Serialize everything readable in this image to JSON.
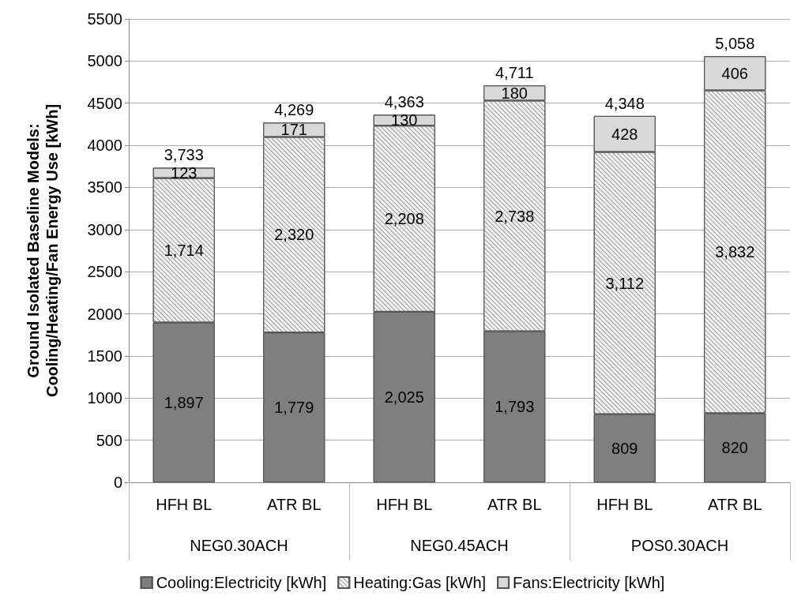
{
  "chart_data": {
    "type": "bar",
    "stacked": true,
    "ylabel": "Ground Isolated Baseline Models: Cooling/Heating/Fan Energy Use [kWh]",
    "categories": [
      "HFH BL",
      "ATR BL",
      "HFH BL",
      "ATR BL",
      "HFH BL",
      "ATR BL"
    ],
    "series": [
      {
        "name": "Cooling:Electricity [kWh]",
        "color": "#7f7f7f",
        "values": [
          1897,
          1779,
          2025,
          1793,
          809,
          820
        ],
        "value_labels": [
          "1,897",
          "1,779",
          "2,025",
          "1,793",
          "809",
          "820"
        ]
      },
      {
        "name": "Heating:Gas [kWh]",
        "color": "#f2f2f2",
        "values": [
          1714,
          2320,
          2208,
          2738,
          3112,
          3832
        ],
        "value_labels": [
          "1,714",
          "2,320",
          "2,208",
          "2,738",
          "3,112",
          "3,832"
        ]
      },
      {
        "name": "Fans:Electricity [kWh]",
        "color": "#d9d9d9",
        "values": [
          123,
          171,
          130,
          180,
          428,
          406
        ],
        "value_labels": [
          "123",
          "171",
          "130",
          "180",
          "428",
          "406"
        ]
      }
    ],
    "totals": [
      "3,733",
      "4,269",
      "4,363",
      "4,711",
      "4,348",
      "5,058"
    ],
    "annotations": [
      "NEG0.30ACH",
      "NEG0.45ACH",
      "POS0.30ACH"
    ],
    "ylim": [
      0,
      5500
    ],
    "yticks": [
      0,
      500,
      1000,
      1500,
      2000,
      2500,
      3000,
      3500,
      4000,
      4500,
      5000,
      5500
    ],
    "grid": "y",
    "legend": "bottom"
  }
}
